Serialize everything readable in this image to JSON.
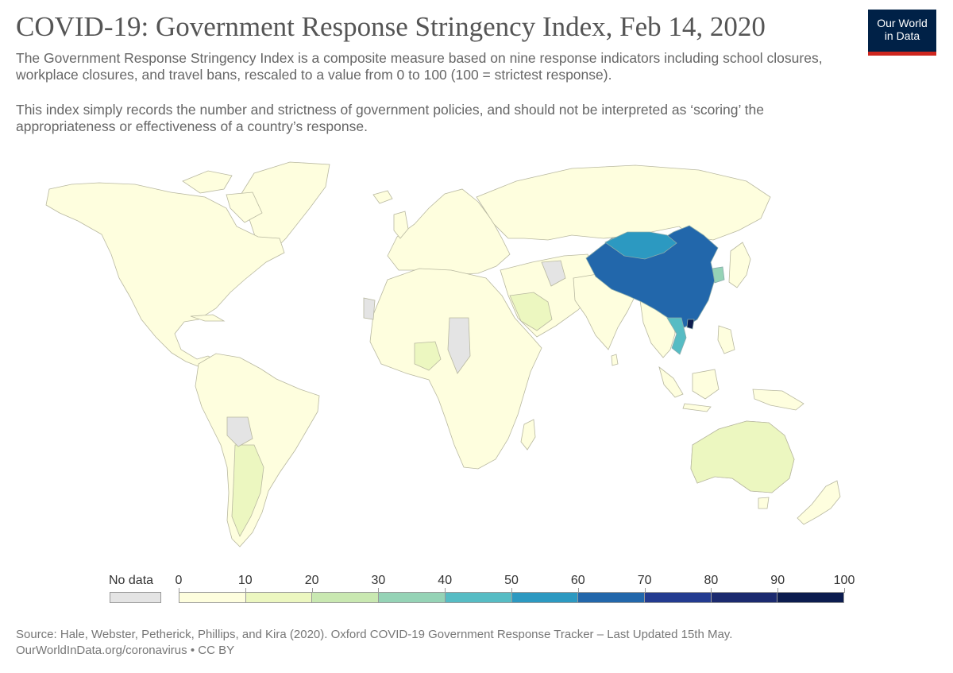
{
  "header": {
    "title": "COVID-19: Government Response Stringency Index, Feb 14, 2020",
    "subtitle_1": "The Government Response Stringency Index is a composite measure based on nine response indicators including school closures, workplace closures, and travel bans, rescaled to a value from 0 to 100 (100 = strictest response).",
    "subtitle_2": "This index simply records the number and strictness of government policies, and should not be interpreted as ‘scoring’ the appropriateness or effectiveness of a country’s response."
  },
  "logo": {
    "line1": "Our World",
    "line2": "in Data"
  },
  "legend": {
    "no_data_label": "No data",
    "ticks": [
      "0",
      "10",
      "20",
      "30",
      "40",
      "50",
      "60",
      "70",
      "80",
      "90",
      "100"
    ],
    "colors": [
      "#fefede",
      "#ecf7c0",
      "#c9e8b1",
      "#95d3b6",
      "#56bcc4",
      "#2c99c1",
      "#2267ab",
      "#233b90",
      "#1b2a6f",
      "#0c1c4f"
    ],
    "no_data_color": "#e4e4e4"
  },
  "colors": {
    "land_low": "#fefede",
    "land_mid": "#ecf7c0",
    "china": "#2267ab",
    "mongolia": "#2c99c1",
    "vietnam": "#56bcc4",
    "no_data": "#e4e4e4",
    "border": "#b8b8a0"
  },
  "footer": {
    "source": "Source: Hale, Webster, Petherick, Phillips, and Kira (2020). Oxford COVID-19 Government Response Tracker – Last Updated 15th May.",
    "url": "OurWorldInData.org/coronavirus • CC BY"
  }
}
